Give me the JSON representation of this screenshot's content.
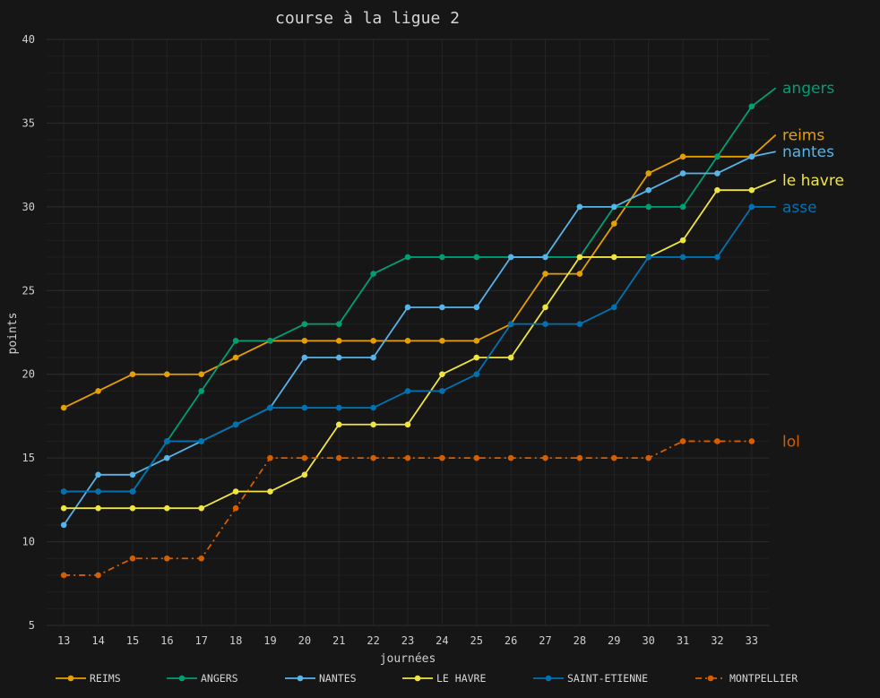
{
  "chart_data": {
    "type": "line",
    "title": "course à la ligue 2",
    "xlabel": "journées",
    "ylabel": "points",
    "x": [
      13,
      14,
      15,
      16,
      17,
      18,
      19,
      20,
      21,
      22,
      23,
      24,
      25,
      26,
      27,
      28,
      29,
      30,
      31,
      32,
      33
    ],
    "xlim": [
      12.5,
      33.5
    ],
    "ylim": [
      5,
      40
    ],
    "yticks": [
      5,
      10,
      15,
      20,
      25,
      30,
      35,
      40
    ],
    "grid": true,
    "legend": "bottom",
    "series": [
      {
        "name": "REIMS",
        "label": "reims",
        "color": "#e69f00",
        "dashed": false,
        "end_y": 34.3,
        "values": [
          18,
          19,
          20,
          20,
          20,
          21,
          22,
          22,
          22,
          22,
          22,
          22,
          22,
          23,
          26,
          26,
          29,
          32,
          33,
          33,
          33
        ]
      },
      {
        "name": "ANGERS",
        "label": "angers",
        "color": "#009e73",
        "dashed": false,
        "end_y": 37.1,
        "values": [
          13,
          13,
          13,
          16,
          19,
          22,
          22,
          23,
          23,
          26,
          27,
          27,
          27,
          27,
          27,
          27,
          30,
          30,
          30,
          33,
          36
        ]
      },
      {
        "name": "NANTES",
        "label": "nantes",
        "color": "#56b4e9",
        "dashed": false,
        "end_y": 33.3,
        "values": [
          11,
          14,
          14,
          15,
          16,
          17,
          18,
          21,
          21,
          21,
          24,
          24,
          24,
          27,
          27,
          30,
          30,
          31,
          32,
          32,
          33
        ]
      },
      {
        "name": "LE HAVRE",
        "label": "le havre",
        "color": "#f0e442",
        "dashed": false,
        "end_y": 31.6,
        "values": [
          12,
          12,
          12,
          12,
          12,
          13,
          13,
          14,
          17,
          17,
          17,
          20,
          21,
          21,
          24,
          27,
          27,
          27,
          28,
          31,
          31
        ]
      },
      {
        "name": "SAINT-ETIENNE",
        "label": "asse",
        "color": "#0072b2",
        "dashed": false,
        "end_y": 30.0,
        "values": [
          13,
          13,
          13,
          16,
          16,
          17,
          18,
          18,
          18,
          18,
          19,
          19,
          20,
          23,
          23,
          23,
          24,
          27,
          27,
          27,
          30
        ]
      },
      {
        "name": "MONTPELLIER",
        "label": "lol",
        "color": "#d55e00",
        "dashed": true,
        "end_y": null,
        "values": [
          8,
          8,
          9,
          9,
          9,
          12,
          15,
          15,
          15,
          15,
          15,
          15,
          15,
          15,
          15,
          15,
          15,
          15,
          16,
          16,
          16
        ]
      }
    ]
  }
}
